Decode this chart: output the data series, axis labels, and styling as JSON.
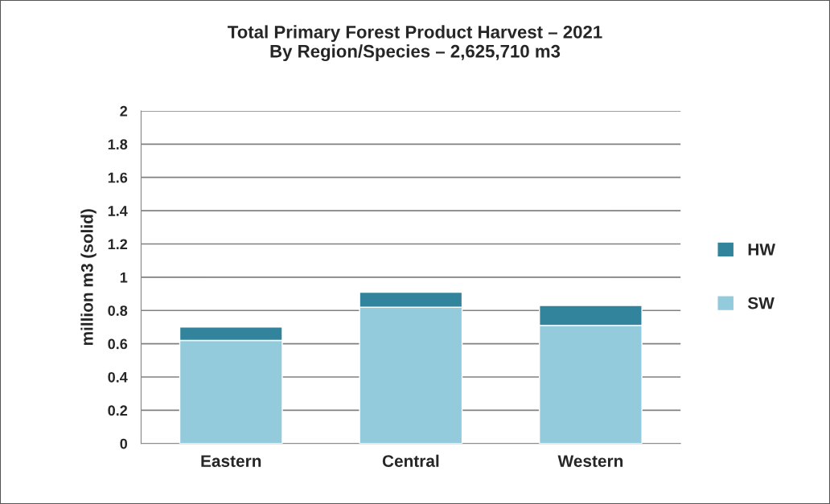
{
  "chart_data": {
    "type": "bar",
    "title": "Total Primary Forest Product Harvest – 2021\nBy Region/Species – 2,625,710 m3",
    "ylabel": "million m3 (solid)",
    "categories": [
      "Eastern",
      "Central",
      "Western"
    ],
    "stacked": true,
    "series": [
      {
        "name": "SW",
        "color": "#93cadc",
        "values": [
          0.62,
          0.82,
          0.71
        ]
      },
      {
        "name": "HW",
        "color": "#31849b",
        "values": [
          0.08,
          0.09,
          0.12
        ]
      }
    ],
    "ylim": [
      0,
      2
    ],
    "yticks": [
      0,
      0.2,
      0.4,
      0.6,
      0.8,
      1,
      1.2,
      1.4,
      1.6,
      1.8,
      2
    ],
    "grid": "y",
    "legend": "right"
  }
}
